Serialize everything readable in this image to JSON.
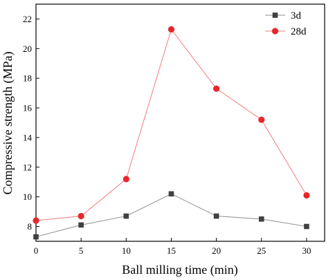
{
  "chart_data": {
    "type": "line",
    "xlabel": "Ball milling time (min)",
    "ylabel": "Compressive strength (MPa)",
    "xlim": [
      0,
      32
    ],
    "ylim": [
      7,
      23
    ],
    "xticks": [
      0,
      5,
      10,
      15,
      20,
      25,
      30
    ],
    "yticks": [
      8,
      10,
      12,
      14,
      16,
      18,
      20,
      22
    ],
    "grid": false,
    "legend_position": "top-right",
    "x": [
      0,
      5,
      10,
      15,
      20,
      25,
      30
    ],
    "series": [
      {
        "name": "3d",
        "values": [
          7.3,
          8.1,
          8.7,
          10.2,
          8.7,
          8.5,
          8.0
        ],
        "color": "#404040",
        "marker": "square",
        "line_color": "#8c8c8c"
      },
      {
        "name": "28d",
        "values": [
          8.4,
          8.7,
          11.2,
          21.3,
          17.3,
          15.2,
          10.1
        ],
        "color": "#e8262b",
        "marker": "circle",
        "line_color": "#f47a7d"
      }
    ]
  }
}
